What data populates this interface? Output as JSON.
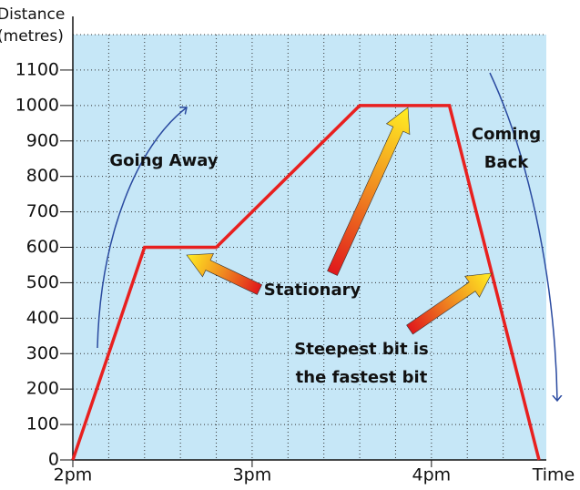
{
  "chart_data": {
    "type": "line",
    "ylabel": [
      "Distance",
      "(metres)"
    ],
    "xlabel": "Time",
    "x": [
      0,
      0.4,
      0.8,
      1.6,
      2.1,
      2.6
    ],
    "values": [
      0,
      600,
      600,
      1000,
      1000,
      0
    ],
    "color": "#e8201f",
    "xlim": [
      0,
      2.6
    ],
    "ylim": [
      0,
      1200
    ],
    "xticks": [
      {
        "value": 0,
        "label": "2pm"
      },
      {
        "value": 1,
        "label": "3pm"
      },
      {
        "value": 2,
        "label": "4pm"
      }
    ],
    "xminorticks": [
      0.2,
      0.4,
      0.6,
      0.8,
      1.2,
      1.4,
      1.6,
      1.8,
      2.2,
      2.4
    ],
    "yticks": [
      0,
      100,
      200,
      300,
      400,
      500,
      600,
      700,
      800,
      900,
      1000,
      1100
    ],
    "ygridtop": 1200,
    "grid": true,
    "background": "#c6e7f7",
    "annotations": [
      {
        "lines": [
          "Going Away"
        ]
      },
      {
        "lines": [
          "Coming",
          "Back"
        ]
      },
      {
        "lines": [
          "Stationary"
        ]
      },
      {
        "lines": [
          "Steepest bit is",
          "the fastest bit"
        ]
      }
    ]
  }
}
